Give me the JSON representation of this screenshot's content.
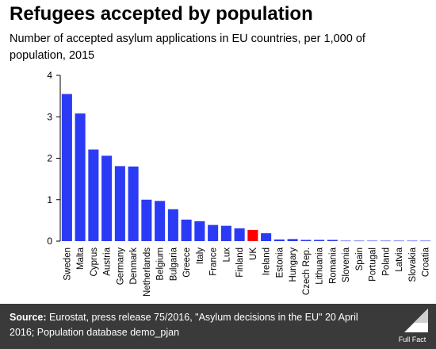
{
  "title": "Refugees accepted by population",
  "subtitle": "Number of accepted asylum applications in EU countries, per 1,000 of population, 2015",
  "footer": {
    "source_label": "Source:",
    "source_text": " Eurostat, press release 75/2016, \"Asylum decisions in the EU\" 20 April 2016; Population database demo_pjan",
    "logo_text": "Full Fact"
  },
  "colors": {
    "bar": "#2b3bf5",
    "highlight": "#ff0000",
    "footer_bg": "#3a3a3a"
  },
  "chart_data": {
    "type": "bar",
    "title": "Refugees accepted by population",
    "xlabel": "",
    "ylabel": "",
    "ylim": [
      0,
      4
    ],
    "yticks": [
      0,
      1,
      2,
      3,
      4
    ],
    "grid": false,
    "categories": [
      "Sweden",
      "Malta",
      "Cyprus",
      "Austria",
      "Germany",
      "Denmark",
      "Netherlands",
      "Belgium",
      "Bulgaria",
      "Greece",
      "Italy",
      "France",
      "Lux",
      "Finland",
      "UK",
      "Ireland",
      "Estonia",
      "Hungary",
      "Czech Rep.",
      "Lithuania",
      "Romania",
      "Slovenia",
      "Spain",
      "Portugal",
      "Poland",
      "Latvia",
      "Slovakia",
      "Croatia"
    ],
    "values": [
      3.55,
      3.08,
      2.21,
      2.06,
      1.81,
      1.8,
      1.0,
      0.97,
      0.77,
      0.52,
      0.48,
      0.39,
      0.37,
      0.31,
      0.27,
      0.19,
      0.04,
      0.05,
      0.03,
      0.03,
      0.03,
      0.01,
      0.01,
      0.01,
      0.01,
      0.01,
      0.01,
      0.01
    ],
    "highlight": "UK"
  }
}
